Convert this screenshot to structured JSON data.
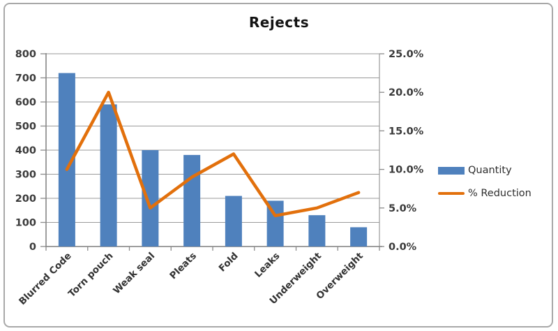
{
  "window": {
    "background": "#ffffff",
    "frame_border_color": "#a8a8a8"
  },
  "chart_data": {
    "type": "combo",
    "title": "Rejects",
    "categories": [
      "Blurred Code",
      "Torn pouch",
      "Weak seal",
      "Pleats",
      "Fold",
      "Leaks",
      "Underweight",
      "Overweight"
    ],
    "series": [
      {
        "name": "Quantity",
        "chart_type": "bar",
        "axis": "left",
        "color": "#4f81bd",
        "values": [
          720,
          590,
          400,
          380,
          210,
          190,
          130,
          80
        ]
      },
      {
        "name": "% Reduction",
        "chart_type": "line",
        "axis": "right",
        "color": "#e2700c",
        "values": [
          10,
          20,
          5,
          9,
          12,
          4,
          5,
          7
        ]
      }
    ],
    "left_axis": {
      "min": 0,
      "max": 800,
      "step": 100,
      "tick_labels": [
        "0",
        "100",
        "200",
        "300",
        "400",
        "500",
        "600",
        "700",
        "800"
      ]
    },
    "right_axis": {
      "min": 0,
      "max": 25,
      "step": 5,
      "tick_labels": [
        "0.0%",
        "5.0%",
        "10.0%",
        "15.0%",
        "20.0%",
        "25.0%"
      ]
    },
    "grid": true,
    "legend_position": "right",
    "style": {
      "gridline_color": "#9a9a9a",
      "axis_line_color": "#7f7f7f",
      "tick_color": "#8a8a8a",
      "axis_text_color": "#3a3a3a",
      "category_text_color": "#333333"
    }
  }
}
